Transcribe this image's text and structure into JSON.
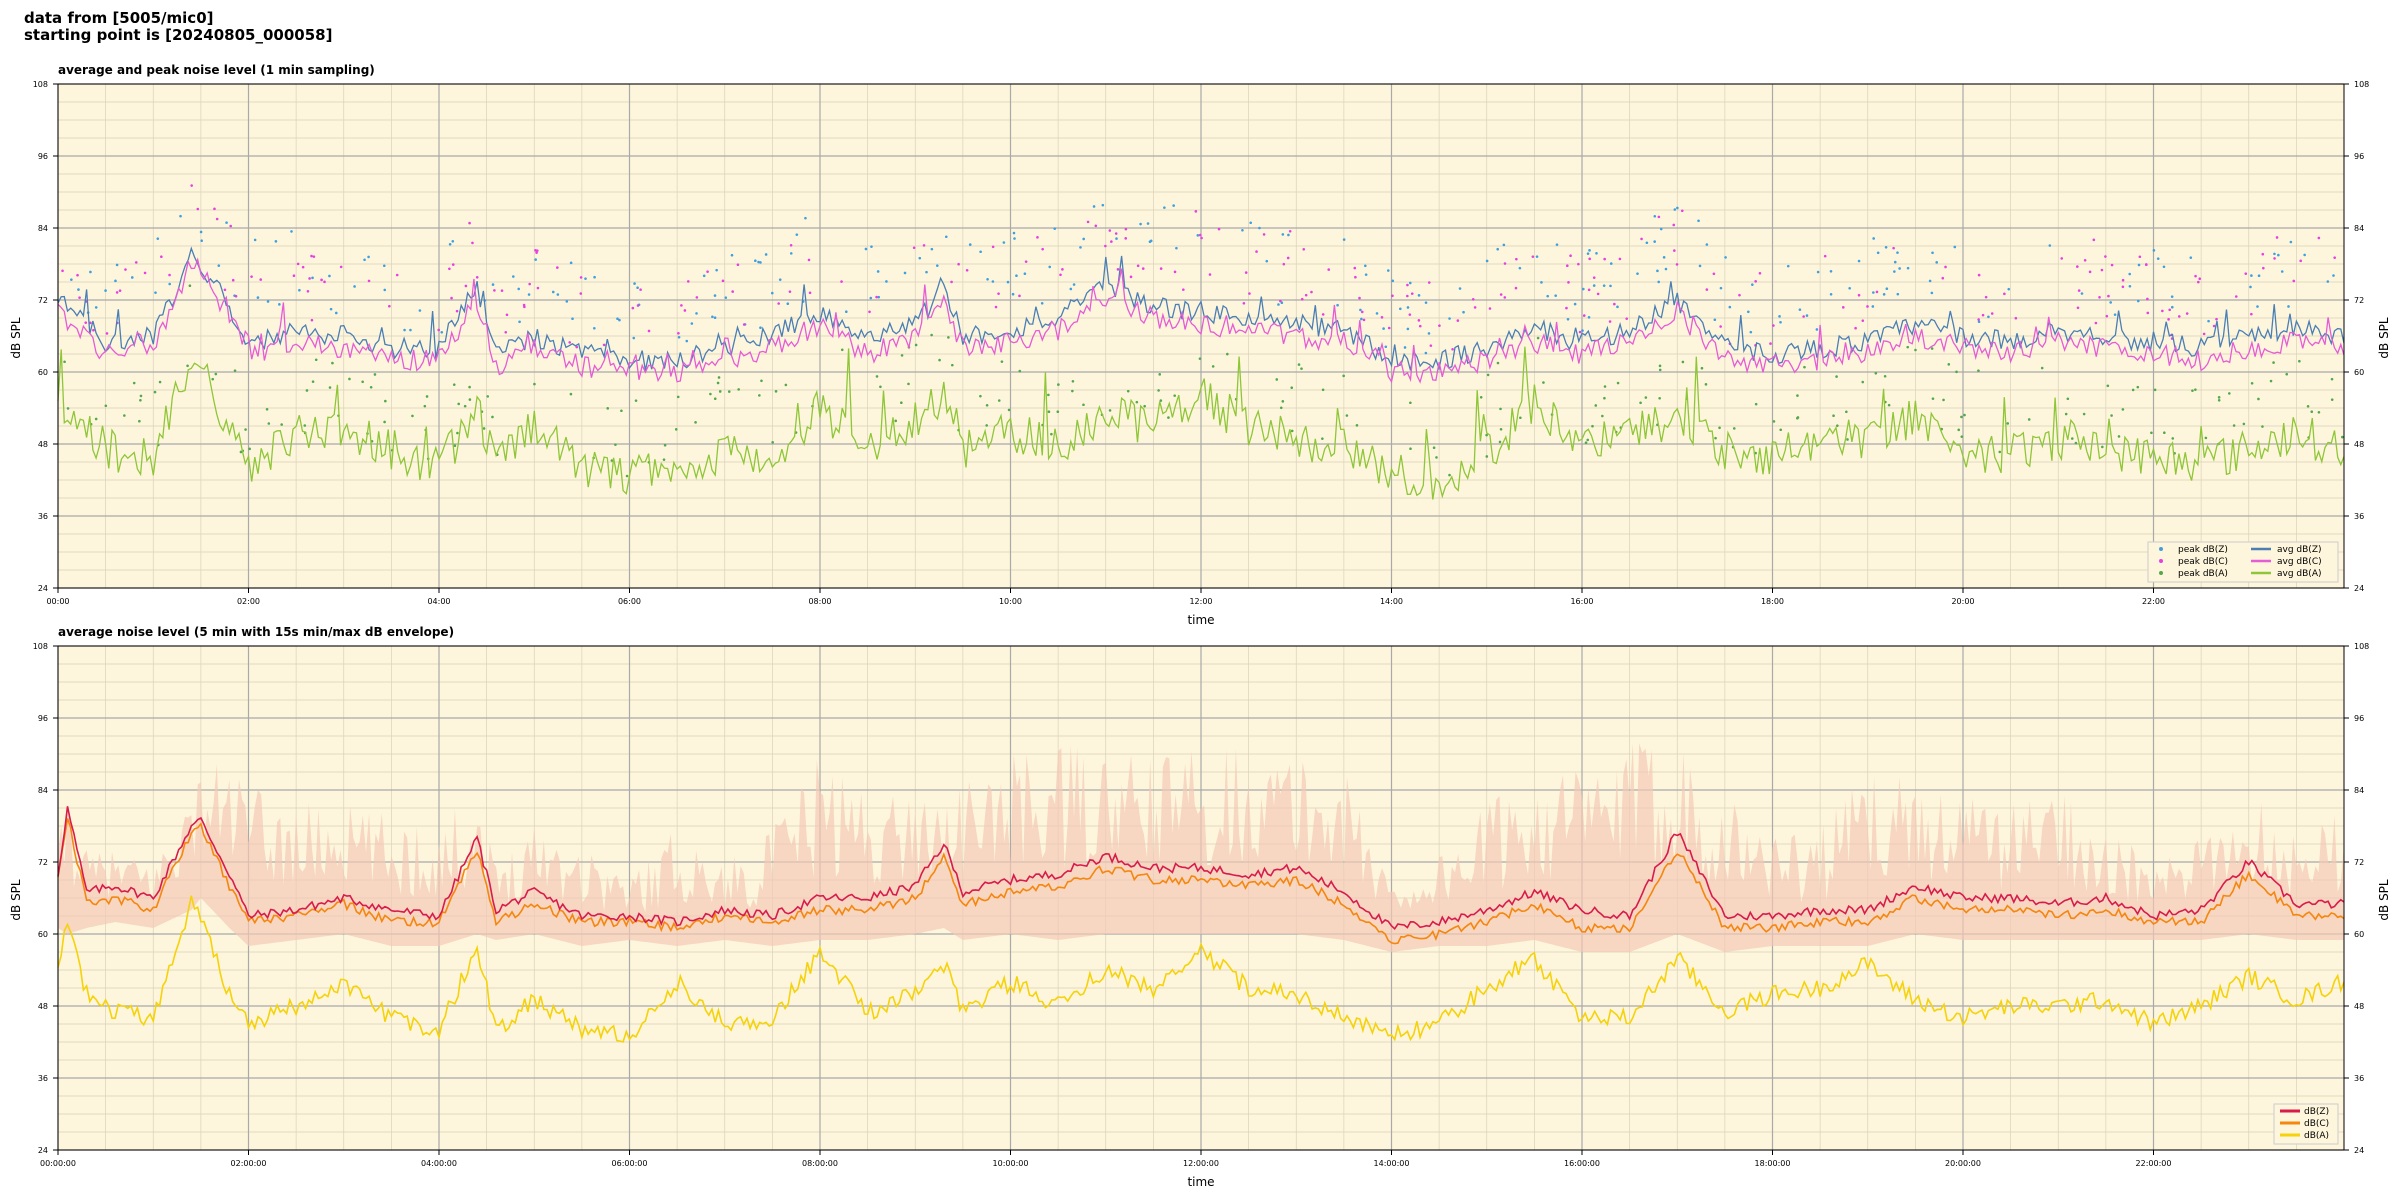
{
  "header": {
    "line1": "data from [5005/mic0]",
    "line2": "starting point is [20240805_000058]"
  },
  "colors": {
    "plot_bg": "#fdf6dc",
    "grid_major": "#a9a9a9",
    "grid_minor": "#d9d2b8",
    "z": "#4a7eb5",
    "c": "#e65bd6",
    "a": "#8fc638",
    "z_peak": "#3ea0e0",
    "c_peak": "#e83fe0",
    "a_peak": "#53a84c",
    "bz": "#d81b4a",
    "bc": "#f5860e",
    "ba": "#f5d20a",
    "envelope": "#f4c9b6"
  },
  "chart_data": [
    {
      "type": "line",
      "title": "average and peak noise level (1 min sampling)",
      "xlabel": "time",
      "ylabel": "dB SPL",
      "ylim": [
        24,
        108
      ],
      "yticks": [
        "108",
        "96",
        "84",
        "72",
        "60",
        "48",
        "36",
        "24"
      ],
      "xticks": [
        "00:00",
        "02:00",
        "04:00",
        "06:00",
        "08:00",
        "10:00",
        "12:00",
        "14:00",
        "16:00",
        "18:00",
        "20:00",
        "22:00"
      ],
      "x_unit": "hour of day",
      "xlim": [
        0,
        24
      ],
      "grid": true,
      "legend": "bottom-right",
      "series_hours": [
        0.0,
        0.5,
        1.0,
        1.4,
        1.6,
        2.0,
        2.5,
        3.0,
        3.5,
        4.0,
        4.4,
        4.6,
        5.0,
        5.5,
        6.0,
        6.5,
        7.0,
        7.5,
        8.0,
        8.5,
        9.0,
        9.3,
        9.5,
        10.0,
        10.5,
        11.0,
        11.5,
        12.0,
        12.5,
        13.0,
        13.5,
        14.0,
        14.5,
        15.0,
        15.5,
        16.0,
        16.5,
        17.0,
        17.5,
        18.0,
        18.5,
        19.0,
        19.5,
        20.0,
        20.5,
        21.0,
        21.5,
        22.0,
        22.5,
        23.0,
        23.5,
        23.98
      ],
      "series": [
        {
          "name": "avg dB(Z)",
          "values": [
            72,
            65,
            66,
            79,
            76,
            65,
            67,
            66,
            64,
            64,
            74,
            63,
            66,
            63,
            62,
            62,
            64,
            66,
            70,
            65,
            68,
            74,
            66,
            67,
            69,
            74,
            71,
            70,
            69,
            68,
            67,
            62,
            62,
            64,
            67,
            65,
            67,
            72,
            64,
            63,
            64,
            65,
            68,
            66,
            65,
            67,
            66,
            65,
            64,
            66,
            67,
            66
          ]
        },
        {
          "name": "avg dB(C)",
          "values": [
            70,
            63,
            64,
            78,
            75,
            63,
            65,
            64,
            62,
            62,
            72,
            61,
            64,
            61,
            60,
            60,
            62,
            64,
            68,
            63,
            66,
            72,
            64,
            65,
            67,
            72,
            69,
            68,
            67,
            66,
            65,
            60,
            60,
            62,
            65,
            63,
            65,
            70,
            62,
            61,
            62,
            63,
            66,
            64,
            63,
            65,
            64,
            63,
            62,
            64,
            65,
            64
          ]
        },
        {
          "name": "avg dB(A)",
          "values": [
            56,
            47,
            46,
            62,
            58,
            43,
            50,
            50,
            47,
            44,
            54,
            45,
            52,
            44,
            43,
            43,
            47,
            46,
            54,
            48,
            52,
            55,
            47,
            50,
            48,
            53,
            51,
            56,
            51,
            49,
            47,
            43,
            42,
            46,
            55,
            47,
            50,
            52,
            47,
            46,
            49,
            48,
            53,
            47,
            46,
            49,
            47,
            46,
            45,
            47,
            50,
            47
          ]
        },
        {
          "name": "peak dB(Z)",
          "values": [
            76,
            70,
            71,
            84,
            82,
            73,
            74,
            72,
            70,
            70,
            80,
            69,
            72,
            69,
            68,
            68,
            70,
            72,
            78,
            71,
            75,
            82,
            72,
            74,
            76,
            82,
            79,
            78,
            76,
            75,
            74,
            67,
            67,
            70,
            74,
            71,
            74,
            80,
            70,
            69,
            71,
            72,
            76,
            73,
            71,
            74,
            73,
            71,
            70,
            73,
            75,
            73
          ]
        },
        {
          "name": "peak dB(C)",
          "values": [
            75,
            69,
            70,
            83,
            81,
            72,
            73,
            71,
            69,
            69,
            79,
            68,
            71,
            68,
            67,
            67,
            69,
            71,
            77,
            70,
            74,
            81,
            71,
            73,
            75,
            81,
            78,
            77,
            75,
            74,
            73,
            66,
            66,
            69,
            73,
            70,
            73,
            79,
            69,
            68,
            70,
            71,
            75,
            72,
            70,
            73,
            72,
            70,
            69,
            72,
            74,
            72
          ]
        },
        {
          "name": "peak dB(A)",
          "values": [
            60,
            50,
            49,
            66,
            62,
            46,
            54,
            54,
            51,
            47,
            58,
            48,
            56,
            47,
            46,
            46,
            51,
            49,
            58,
            52,
            56,
            60,
            51,
            54,
            52,
            57,
            55,
            60,
            55,
            53,
            51,
            46,
            45,
            50,
            59,
            51,
            54,
            56,
            51,
            50,
            53,
            52,
            57,
            51,
            50,
            53,
            51,
            50,
            49,
            51,
            54,
            51
          ]
        }
      ],
      "legend_labels": [
        "peak dB(Z)",
        "peak dB(C)",
        "peak dB(A)",
        "avg dB(Z)",
        "avg dB(C)",
        "avg dB(A)"
      ]
    },
    {
      "type": "line",
      "title": "average noise level (5 min with 15s min/max dB envelope)",
      "xlabel": "time",
      "ylabel": "dB SPL",
      "ylim": [
        24,
        108
      ],
      "yticks": [
        "108",
        "96",
        "84",
        "72",
        "60",
        "48",
        "36",
        "24"
      ],
      "xticks": [
        "00:00:00",
        "02:00:00",
        "04:00:00",
        "06:00:00",
        "08:00:00",
        "10:00:00",
        "12:00:00",
        "14:00:00",
        "16:00:00",
        "18:00:00",
        "20:00:00",
        "22:00:00"
      ],
      "x_unit": "hour of day",
      "xlim": [
        0,
        24
      ],
      "grid": true,
      "legend": "bottom-right",
      "series_hours": [
        0.0,
        0.1,
        0.3,
        0.6,
        1.0,
        1.4,
        1.5,
        1.8,
        2.0,
        2.5,
        3.0,
        3.5,
        4.0,
        4.4,
        4.6,
        5.0,
        5.5,
        6.0,
        6.5,
        7.0,
        7.5,
        8.0,
        8.5,
        9.0,
        9.3,
        9.5,
        10.0,
        10.5,
        11.0,
        11.5,
        12.0,
        12.5,
        13.0,
        13.5,
        14.0,
        14.5,
        15.0,
        15.5,
        16.0,
        16.5,
        17.0,
        17.5,
        18.0,
        18.5,
        19.0,
        19.5,
        20.0,
        20.5,
        21.0,
        21.5,
        22.0,
        22.5,
        23.0,
        23.5,
        23.98
      ],
      "series": [
        {
          "name": "dB(Z)",
          "values": [
            70,
            81,
            67,
            68,
            66,
            78,
            79,
            70,
            63,
            64,
            66,
            64,
            63,
            76,
            64,
            67,
            63,
            63,
            62,
            64,
            63,
            66,
            66,
            68,
            75,
            67,
            69,
            70,
            73,
            71,
            71,
            70,
            71,
            67,
            61,
            62,
            64,
            67,
            64,
            63,
            77,
            63,
            63,
            64,
            64,
            68,
            66,
            66,
            65,
            66,
            63,
            64,
            72,
            65,
            65
          ]
        },
        {
          "name": "dB(C)",
          "values": [
            69,
            80,
            65,
            66,
            64,
            77,
            78,
            68,
            62,
            63,
            65,
            62,
            62,
            74,
            62,
            65,
            62,
            62,
            61,
            63,
            62,
            64,
            64,
            66,
            73,
            65,
            67,
            68,
            71,
            69,
            69,
            68,
            69,
            65,
            59,
            60,
            62,
            65,
            61,
            61,
            74,
            61,
            61,
            62,
            62,
            66,
            64,
            64,
            63,
            64,
            62,
            62,
            70,
            63,
            63
          ]
        },
        {
          "name": "dB(A)",
          "values": [
            55,
            62,
            50,
            47,
            46,
            65,
            62,
            50,
            45,
            48,
            52,
            46,
            44,
            58,
            44,
            49,
            44,
            43,
            52,
            45,
            46,
            57,
            47,
            50,
            55,
            47,
            52,
            48,
            54,
            51,
            57,
            51,
            50,
            46,
            43,
            45,
            51,
            56,
            46,
            46,
            56,
            47,
            50,
            51,
            55,
            49,
            46,
            48,
            48,
            49,
            45,
            48,
            53,
            49,
            52
          ]
        }
      ],
      "envelope": {
        "name": "min/max envelope",
        "upper": [
          75,
          85,
          74,
          74,
          72,
          84,
          88,
          90,
          85,
          82,
          82,
          80,
          79,
          84,
          72,
          80,
          76,
          70,
          78,
          72,
          78,
          90,
          84,
          84,
          86,
          85,
          90,
          92,
          90,
          90,
          92,
          92,
          90,
          88,
          70,
          74,
          82,
          88,
          88,
          92,
          94,
          84,
          78,
          78,
          88,
          86,
          84,
          82,
          86,
          78,
          72,
          76,
          84,
          78,
          82
        ],
        "lower": [
          61,
          60,
          61,
          62,
          61,
          64,
          66,
          61,
          58,
          59,
          60,
          58,
          58,
          60,
          59,
          60,
          58,
          59,
          58,
          59,
          58,
          59,
          59,
          60,
          61,
          59,
          60,
          59,
          60,
          60,
          60,
          60,
          60,
          59,
          57,
          58,
          58,
          59,
          57,
          57,
          60,
          57,
          58,
          58,
          58,
          60,
          59,
          59,
          59,
          59,
          59,
          59,
          60,
          59,
          59
        ]
      },
      "legend_labels": [
        "dB(Z)",
        "dB(C)",
        "dB(A)"
      ]
    }
  ]
}
